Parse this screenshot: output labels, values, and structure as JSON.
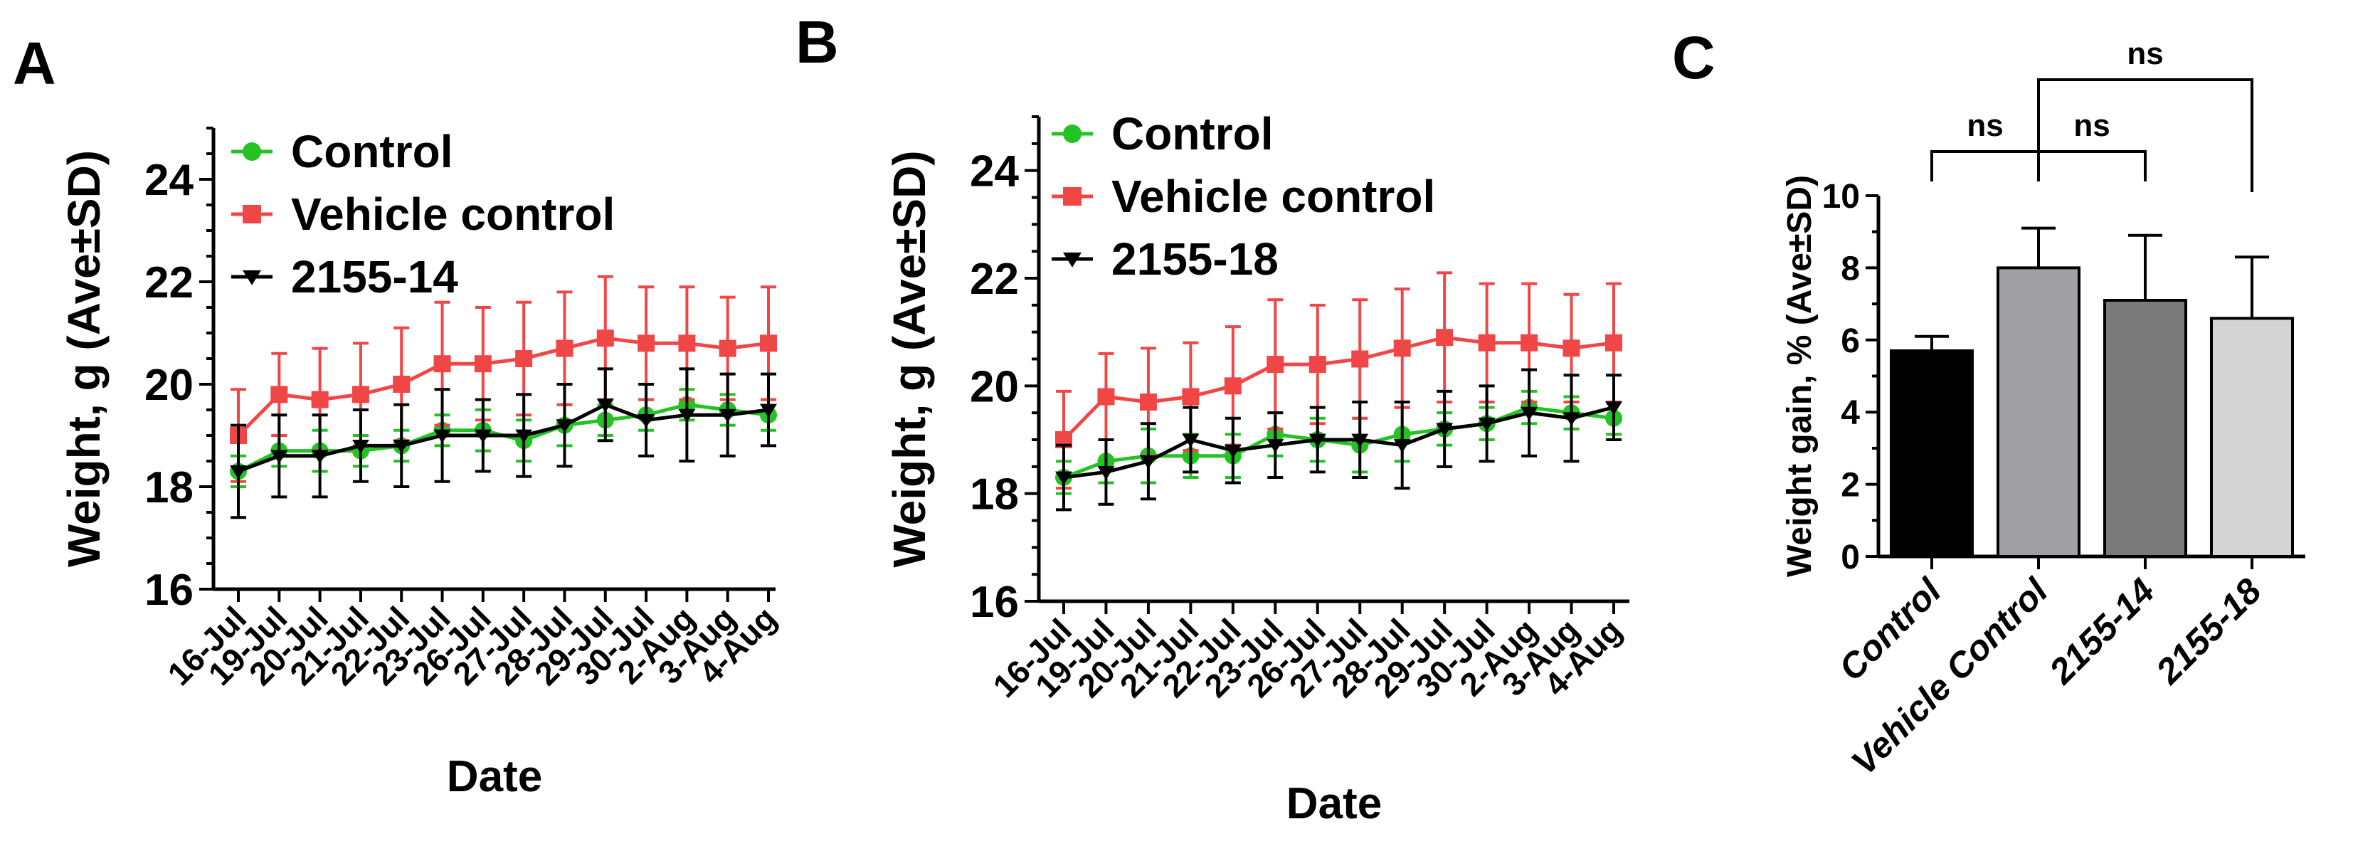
{
  "colors": {
    "control": "#22c322",
    "vehicle": "#f04646",
    "compound": "#000000",
    "axis": "#000000"
  },
  "panel_labels": [
    "A",
    "B",
    "C"
  ],
  "chart_data": [
    {
      "type": "line",
      "panel": "A",
      "title": "",
      "xlabel": "Date",
      "ylabel": "Weight, g (Ave±SD)",
      "ylim": [
        16,
        25
      ],
      "yticks": [
        16,
        18,
        20,
        22,
        24
      ],
      "categories": [
        "16-Jul",
        "19-Jul",
        "20-Jul",
        "21-Jul",
        "22-Jul",
        "23-Jul",
        "26-Jul",
        "27-Jul",
        "28-Jul",
        "29-Jul",
        "30-Jul",
        "2-Aug",
        "3-Aug",
        "4-Aug"
      ],
      "legend": [
        "Control",
        "Vehicle control",
        "2155-14"
      ],
      "series": [
        {
          "name": "Control",
          "color": "#22c322",
          "marker": "circle",
          "values": [
            18.3,
            18.7,
            18.7,
            18.7,
            18.8,
            19.1,
            19.1,
            18.9,
            19.2,
            19.3,
            19.4,
            19.6,
            19.5,
            19.4
          ],
          "sd": [
            0.3,
            0.3,
            0.4,
            0.3,
            0.3,
            0.3,
            0.4,
            0.4,
            0.4,
            0.3,
            0.3,
            0.3,
            0.3,
            0.3
          ]
        },
        {
          "name": "Vehicle control",
          "color": "#f04646",
          "marker": "square",
          "values": [
            19.0,
            19.8,
            19.7,
            19.8,
            20.0,
            20.4,
            20.4,
            20.5,
            20.7,
            20.9,
            20.8,
            20.8,
            20.7,
            20.8
          ],
          "sd": [
            0.9,
            0.8,
            1.0,
            1.0,
            1.1,
            1.2,
            1.1,
            1.1,
            1.1,
            1.2,
            1.1,
            1.1,
            1.0,
            1.1
          ]
        },
        {
          "name": "2155-14",
          "color": "#000000",
          "marker": "triangle-down",
          "values": [
            18.3,
            18.6,
            18.6,
            18.8,
            18.8,
            19.0,
            19.0,
            19.0,
            19.2,
            19.6,
            19.3,
            19.4,
            19.4,
            19.5
          ],
          "sd": [
            0.9,
            0.8,
            0.8,
            0.7,
            0.8,
            0.9,
            0.7,
            0.8,
            0.8,
            0.7,
            0.7,
            0.9,
            0.8,
            0.7
          ]
        }
      ]
    },
    {
      "type": "line",
      "panel": "B",
      "title": "",
      "xlabel": "Date",
      "ylabel": "Weight, g (Ave±SD)",
      "ylim": [
        16,
        25
      ],
      "yticks": [
        16,
        18,
        20,
        22,
        24
      ],
      "categories": [
        "16-Jul",
        "19-Jul",
        "20-Jul",
        "21-Jul",
        "22-Jul",
        "23-Jul",
        "26-Jul",
        "27-Jul",
        "28-Jul",
        "29-Jul",
        "30-Jul",
        "2-Aug",
        "3-Aug",
        "4-Aug"
      ],
      "legend": [
        "Control",
        "Vehicle control",
        "2155-18"
      ],
      "series": [
        {
          "name": "Control",
          "color": "#22c322",
          "marker": "circle",
          "values": [
            18.3,
            18.6,
            18.7,
            18.7,
            18.7,
            19.1,
            19.0,
            18.9,
            19.1,
            19.2,
            19.3,
            19.6,
            19.5,
            19.4
          ],
          "sd": [
            0.3,
            0.4,
            0.5,
            0.4,
            0.4,
            0.4,
            0.4,
            0.5,
            0.5,
            0.3,
            0.3,
            0.3,
            0.3,
            0.3
          ]
        },
        {
          "name": "Vehicle control",
          "color": "#f04646",
          "marker": "square",
          "values": [
            19.0,
            19.8,
            19.7,
            19.8,
            20.0,
            20.4,
            20.4,
            20.5,
            20.7,
            20.9,
            20.8,
            20.8,
            20.7,
            20.8
          ],
          "sd": [
            0.9,
            0.8,
            1.0,
            1.0,
            1.1,
            1.2,
            1.1,
            1.1,
            1.1,
            1.2,
            1.1,
            1.1,
            1.0,
            1.1
          ]
        },
        {
          "name": "2155-18",
          "color": "#000000",
          "marker": "triangle-down",
          "values": [
            18.3,
            18.4,
            18.6,
            19.0,
            18.8,
            18.9,
            19.0,
            19.0,
            18.9,
            19.2,
            19.3,
            19.5,
            19.4,
            19.6
          ],
          "sd": [
            0.6,
            0.6,
            0.7,
            0.6,
            0.6,
            0.6,
            0.6,
            0.7,
            0.8,
            0.7,
            0.7,
            0.8,
            0.8,
            0.6
          ]
        }
      ]
    },
    {
      "type": "bar",
      "panel": "C",
      "title": "",
      "xlabel": "",
      "ylabel": "Weight gain, % (Ave±SD)",
      "ylim": [
        0,
        10
      ],
      "yticks": [
        0,
        2,
        4,
        6,
        8,
        10
      ],
      "categories": [
        "Control",
        "Vehicle Control",
        "2155-14",
        "2155-18"
      ],
      "values": [
        5.7,
        8.0,
        7.1,
        6.6
      ],
      "sd": [
        0.4,
        1.1,
        1.8,
        1.7
      ],
      "bar_colors": [
        "#000000",
        "#a0a0a4",
        "#7a7a7a",
        "#d4d4d4"
      ],
      "annotations": [
        {
          "from": "Control",
          "to": "Vehicle Control",
          "text": "ns",
          "level": 1
        },
        {
          "from": "Vehicle Control",
          "to": "2155-14",
          "text": "ns",
          "level": 1
        },
        {
          "from": "Vehicle Control",
          "to": "2155-18",
          "text": "ns",
          "level": 2
        }
      ]
    }
  ]
}
